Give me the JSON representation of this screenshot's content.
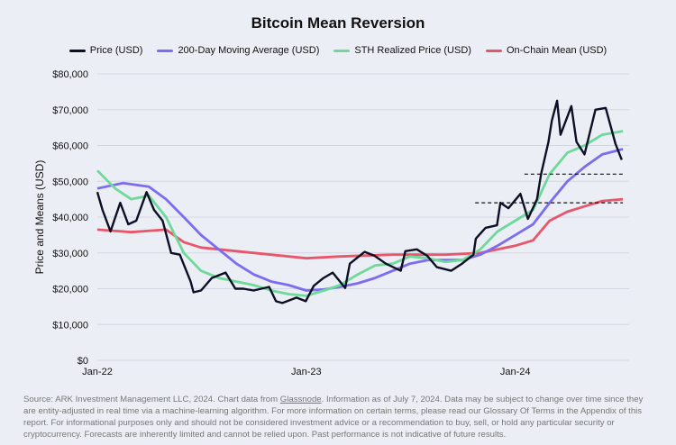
{
  "chart_data": {
    "type": "line",
    "title": "Bitcoin Mean Reversion",
    "ylabel": "Price and Means (USD)",
    "xlabel": "",
    "ylim": [
      0,
      80000
    ],
    "xlim": [
      "2022-01-01",
      "2024-07-07"
    ],
    "yticks": [
      0,
      10000,
      20000,
      30000,
      40000,
      50000,
      60000,
      70000,
      80000
    ],
    "ytick_labels": [
      "$0",
      "$10,000",
      "$20,000",
      "$30,000",
      "$40,000",
      "$50,000",
      "$60,000",
      "$70,000",
      "$80,000"
    ],
    "xticks": [
      "2022-01-01",
      "2023-01-01",
      "2024-01-01"
    ],
    "xtick_labels": [
      "Jan-22",
      "Jan-23",
      "Jan-24"
    ],
    "grid": "horizontal",
    "legend": "top",
    "series": [
      {
        "name": "Price (USD)",
        "color": "#0d0f24",
        "points": [
          [
            "2022-01-01",
            47000
          ],
          [
            "2022-01-10",
            42000
          ],
          [
            "2022-01-24",
            36000
          ],
          [
            "2022-02-10",
            44000
          ],
          [
            "2022-02-24",
            38000
          ],
          [
            "2022-03-10",
            39000
          ],
          [
            "2022-03-28",
            47000
          ],
          [
            "2022-04-10",
            42000
          ],
          [
            "2022-04-25",
            39000
          ],
          [
            "2022-05-10",
            30000
          ],
          [
            "2022-05-25",
            29500
          ],
          [
            "2022-06-13",
            22000
          ],
          [
            "2022-06-18",
            19000
          ],
          [
            "2022-07-01",
            19500
          ],
          [
            "2022-07-20",
            23000
          ],
          [
            "2022-08-13",
            24500
          ],
          [
            "2022-08-30",
            20000
          ],
          [
            "2022-09-13",
            20000
          ],
          [
            "2022-10-01",
            19500
          ],
          [
            "2022-10-28",
            20500
          ],
          [
            "2022-11-09",
            16500
          ],
          [
            "2022-11-20",
            16000
          ],
          [
            "2022-12-15",
            17500
          ],
          [
            "2022-12-31",
            16500
          ],
          [
            "2023-01-14",
            20800
          ],
          [
            "2023-01-31",
            23000
          ],
          [
            "2023-02-16",
            24500
          ],
          [
            "2023-03-10",
            20200
          ],
          [
            "2023-03-18",
            27000
          ],
          [
            "2023-04-13",
            30300
          ],
          [
            "2023-04-30",
            29200
          ],
          [
            "2023-05-20",
            27000
          ],
          [
            "2023-06-15",
            25000
          ],
          [
            "2023-06-23",
            30500
          ],
          [
            "2023-07-13",
            31000
          ],
          [
            "2023-07-31",
            29200
          ],
          [
            "2023-08-17",
            26000
          ],
          [
            "2023-09-11",
            25000
          ],
          [
            "2023-09-30",
            27000
          ],
          [
            "2023-10-20",
            29500
          ],
          [
            "2023-10-24",
            34000
          ],
          [
            "2023-11-10",
            37000
          ],
          [
            "2023-11-30",
            37700
          ],
          [
            "2023-12-06",
            44000
          ],
          [
            "2023-12-20",
            42500
          ],
          [
            "2024-01-10",
            46500
          ],
          [
            "2024-01-23",
            39500
          ],
          [
            "2024-02-08",
            45000
          ],
          [
            "2024-02-15",
            52000
          ],
          [
            "2024-02-28",
            61000
          ],
          [
            "2024-03-05",
            67000
          ],
          [
            "2024-03-14",
            72500
          ],
          [
            "2024-03-20",
            63000
          ],
          [
            "2024-04-08",
            71000
          ],
          [
            "2024-04-17",
            61000
          ],
          [
            "2024-05-01",
            57500
          ],
          [
            "2024-05-20",
            70000
          ],
          [
            "2024-06-07",
            70500
          ],
          [
            "2024-06-24",
            60500
          ],
          [
            "2024-07-05",
            56000
          ]
        ]
      },
      {
        "name": "200-Day Moving Average (USD)",
        "color": "#7b6cf0",
        "points": [
          [
            "2022-01-01",
            48000
          ],
          [
            "2022-02-15",
            49500
          ],
          [
            "2022-04-01",
            48500
          ],
          [
            "2022-05-01",
            45000
          ],
          [
            "2022-06-01",
            40000
          ],
          [
            "2022-07-01",
            35000
          ],
          [
            "2022-08-01",
            31000
          ],
          [
            "2022-09-01",
            27000
          ],
          [
            "2022-10-01",
            24000
          ],
          [
            "2022-11-01",
            22000
          ],
          [
            "2022-12-01",
            21000
          ],
          [
            "2023-01-01",
            19500
          ],
          [
            "2023-02-01",
            19800
          ],
          [
            "2023-03-01",
            20500
          ],
          [
            "2023-04-01",
            21500
          ],
          [
            "2023-05-01",
            23000
          ],
          [
            "2023-06-01",
            25000
          ],
          [
            "2023-07-01",
            27000
          ],
          [
            "2023-08-01",
            28000
          ],
          [
            "2023-09-01",
            28000
          ],
          [
            "2023-10-01",
            28000
          ],
          [
            "2023-11-01",
            29500
          ],
          [
            "2023-12-01",
            32000
          ],
          [
            "2024-01-01",
            35000
          ],
          [
            "2024-02-01",
            38000
          ],
          [
            "2024-03-01",
            44000
          ],
          [
            "2024-04-01",
            50000
          ],
          [
            "2024-05-01",
            54000
          ],
          [
            "2024-06-01",
            57500
          ],
          [
            "2024-07-07",
            59000
          ]
        ]
      },
      {
        "name": "STH Realized Price (USD)",
        "color": "#6ed99a",
        "points": [
          [
            "2022-01-01",
            53000
          ],
          [
            "2022-02-01",
            48000
          ],
          [
            "2022-03-01",
            45000
          ],
          [
            "2022-04-01",
            46000
          ],
          [
            "2022-05-01",
            40000
          ],
          [
            "2022-06-01",
            30000
          ],
          [
            "2022-07-01",
            25000
          ],
          [
            "2022-08-01",
            23000
          ],
          [
            "2022-09-01",
            22000
          ],
          [
            "2022-10-01",
            21000
          ],
          [
            "2022-11-01",
            19500
          ],
          [
            "2022-12-01",
            18500
          ],
          [
            "2023-01-01",
            18000
          ],
          [
            "2023-02-01",
            19500
          ],
          [
            "2023-03-01",
            21000
          ],
          [
            "2023-04-01",
            24000
          ],
          [
            "2023-05-01",
            26500
          ],
          [
            "2023-06-01",
            27000
          ],
          [
            "2023-07-01",
            29000
          ],
          [
            "2023-08-01",
            28500
          ],
          [
            "2023-09-01",
            27500
          ],
          [
            "2023-10-01",
            28000
          ],
          [
            "2023-11-01",
            31000
          ],
          [
            "2023-12-01",
            36000
          ],
          [
            "2024-01-01",
            39000
          ],
          [
            "2024-02-01",
            42000
          ],
          [
            "2024-03-01",
            52000
          ],
          [
            "2024-04-01",
            58000
          ],
          [
            "2024-05-01",
            60000
          ],
          [
            "2024-06-01",
            63000
          ],
          [
            "2024-07-07",
            64000
          ]
        ]
      },
      {
        "name": "On-Chain Mean (USD)",
        "color": "#e8566b",
        "points": [
          [
            "2022-01-01",
            36500
          ],
          [
            "2022-03-01",
            35800
          ],
          [
            "2022-05-01",
            36500
          ],
          [
            "2022-06-01",
            33000
          ],
          [
            "2022-07-01",
            31500
          ],
          [
            "2022-09-01",
            30500
          ],
          [
            "2022-12-01",
            29000
          ],
          [
            "2023-01-01",
            28500
          ],
          [
            "2023-03-01",
            29000
          ],
          [
            "2023-06-01",
            29500
          ],
          [
            "2023-09-01",
            29500
          ],
          [
            "2023-11-01",
            30000
          ],
          [
            "2024-01-01",
            32000
          ],
          [
            "2024-02-01",
            33500
          ],
          [
            "2024-03-01",
            39000
          ],
          [
            "2024-04-01",
            41500
          ],
          [
            "2024-05-01",
            43000
          ],
          [
            "2024-06-01",
            44500
          ],
          [
            "2024-07-07",
            45000
          ]
        ]
      }
    ],
    "annotations": [
      {
        "type": "dashed-hline",
        "y": 52000,
        "from": "2024-01-17",
        "to": "2024-07-07",
        "color": "#111111"
      },
      {
        "type": "dashed-hline",
        "y": 44000,
        "from": "2023-10-23",
        "to": "2024-07-07",
        "color": "#111111"
      }
    ]
  },
  "footer": {
    "pre": "Source: ARK Investment Management LLC, 2024. Chart data from ",
    "link": "Glassnode",
    "post": ". Information as of July 7, 2024. Data may be subject to change over time since they are entity-adjusted in real time via a machine-learning algorithm. For more information on certain terms, please read our Glossary Of Terms in the Appendix of this report. For informational purposes only and should not be considered investment advice or a recommendation to buy, sell, or hold any particular security or cryptocurrency. Forecasts are inherently limited and cannot be relied upon. Past performance is not indicative of future results."
  }
}
